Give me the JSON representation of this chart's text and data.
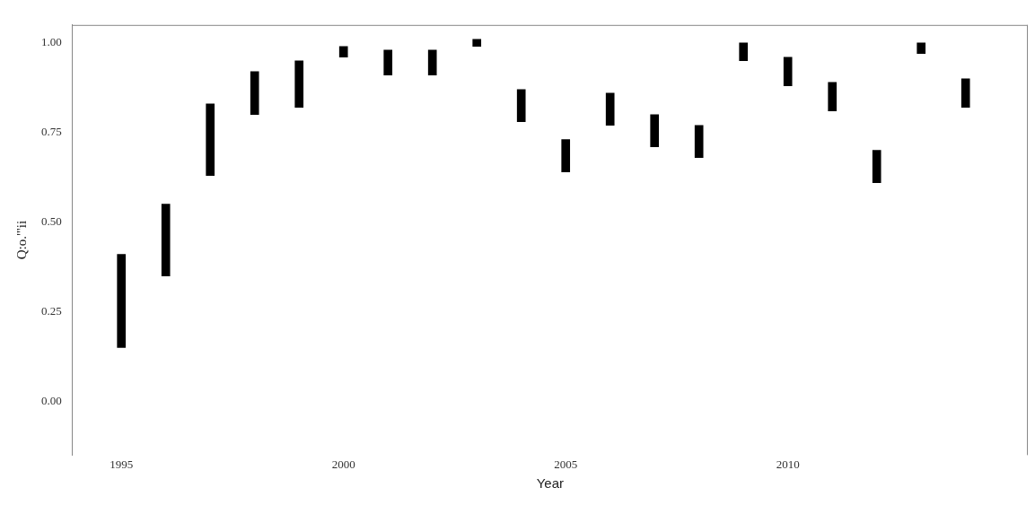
{
  "chart_data": {
    "type": "bar",
    "xlabel": "Year",
    "ylabel": "Q:o.\"'ii",
    "x": [
      1995,
      1996,
      1997,
      1998,
      1999,
      2000,
      2001,
      2002,
      2003,
      2004,
      2005,
      2006,
      2007,
      2008,
      2009,
      2010,
      2011,
      2012,
      2013,
      2014
    ],
    "base": [
      0.15,
      0.35,
      0.63,
      0.8,
      0.82,
      0.96,
      0.91,
      0.91,
      0.99,
      0.78,
      0.64,
      0.77,
      0.71,
      0.68,
      0.95,
      0.88,
      0.81,
      0.61,
      0.97,
      0.82
    ],
    "values": [
      0.26,
      0.2,
      0.2,
      0.12,
      0.13,
      0.03,
      0.07,
      0.07,
      0.02,
      0.09,
      0.09,
      0.09,
      0.09,
      0.09,
      0.05,
      0.08,
      0.08,
      0.09,
      0.03,
      0.08
    ],
    "color": "#000000",
    "xlim": [
      1993.9,
      2015.4
    ],
    "xticks": [
      1995,
      2000,
      2005,
      2010
    ],
    "ylim": [
      -0.15,
      1.05
    ],
    "yticks": [
      {
        "value": 0,
        "label": "0.00"
      },
      {
        "value": 0.25,
        "label": "0.25"
      },
      {
        "value": 0.5,
        "label": "0.50"
      },
      {
        "value": 0.75,
        "label": "0.75"
      },
      {
        "value": 1,
        "label": "1.00"
      }
    ],
    "grid": false,
    "legend": false
  }
}
